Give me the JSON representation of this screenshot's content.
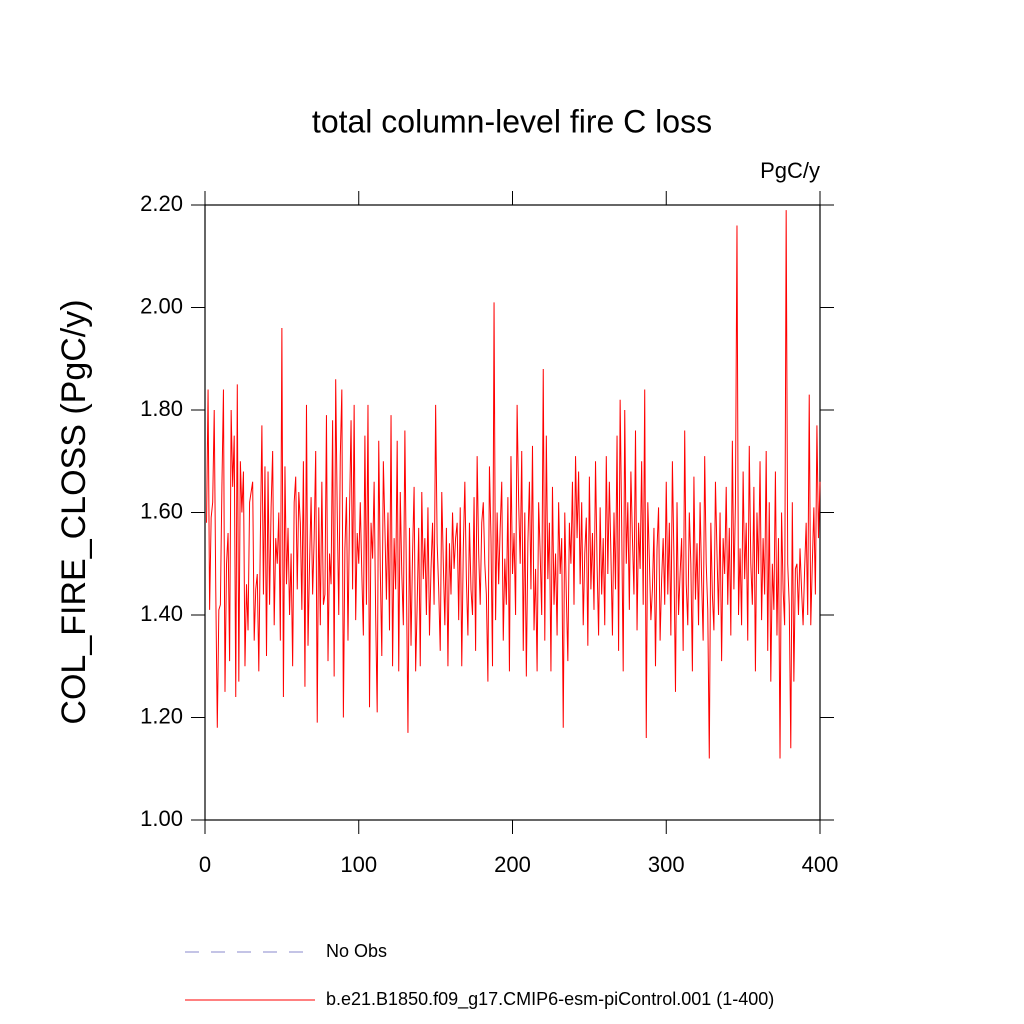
{
  "chart_data": {
    "type": "line",
    "title": "total column-level fire C loss",
    "units": "PgC/y",
    "ylabel": "COL_FIRE_CLOSS  (PgC/y)",
    "xlim": [
      0,
      400
    ],
    "xticks": [
      0,
      100,
      200,
      300,
      400
    ],
    "ylim": [
      1.0,
      2.2
    ],
    "yticks": [
      {
        "value": 1.0,
        "label": "1.00"
      },
      {
        "value": 1.2,
        "label": "1.20"
      },
      {
        "value": 1.4,
        "label": "1.40"
      },
      {
        "value": 1.6,
        "label": "1.60"
      },
      {
        "value": 1.8,
        "label": "1.80"
      },
      {
        "value": 2.0,
        "label": "2.00"
      },
      {
        "value": 2.2,
        "label": "2.20"
      }
    ],
    "legend_extra": [
      {
        "name": "No Obs",
        "color": "#8888cc",
        "dashed": true
      }
    ],
    "x": [
      1,
      2,
      3,
      4,
      5,
      6,
      7,
      8,
      9,
      10,
      11,
      12,
      13,
      14,
      15,
      16,
      17,
      18,
      19,
      20,
      21,
      22,
      23,
      24,
      25,
      26,
      27,
      28,
      29,
      30,
      31,
      32,
      33,
      34,
      35,
      36,
      37,
      38,
      39,
      40,
      41,
      42,
      43,
      44,
      45,
      46,
      47,
      48,
      49,
      50,
      51,
      52,
      53,
      54,
      55,
      56,
      57,
      58,
      59,
      60,
      61,
      62,
      63,
      64,
      65,
      66,
      67,
      68,
      69,
      70,
      71,
      72,
      73,
      74,
      75,
      76,
      77,
      78,
      79,
      80,
      81,
      82,
      83,
      84,
      85,
      86,
      87,
      88,
      89,
      90,
      91,
      92,
      93,
      94,
      95,
      96,
      97,
      98,
      99,
      100,
      101,
      102,
      103,
      104,
      105,
      106,
      107,
      108,
      109,
      110,
      111,
      112,
      113,
      114,
      115,
      116,
      117,
      118,
      119,
      120,
      121,
      122,
      123,
      124,
      125,
      126,
      127,
      128,
      129,
      130,
      131,
      132,
      133,
      134,
      135,
      136,
      137,
      138,
      139,
      140,
      141,
      142,
      143,
      144,
      145,
      146,
      147,
      148,
      149,
      150,
      151,
      152,
      153,
      154,
      155,
      156,
      157,
      158,
      159,
      160,
      161,
      162,
      163,
      164,
      165,
      166,
      167,
      168,
      169,
      170,
      171,
      172,
      173,
      174,
      175,
      176,
      177,
      178,
      179,
      180,
      181,
      182,
      183,
      184,
      185,
      186,
      187,
      188,
      189,
      190,
      191,
      192,
      193,
      194,
      195,
      196,
      197,
      198,
      199,
      200,
      201,
      202,
      203,
      204,
      205,
      206,
      207,
      208,
      209,
      210,
      211,
      212,
      213,
      214,
      215,
      216,
      217,
      218,
      219,
      220,
      221,
      222,
      223,
      224,
      225,
      226,
      227,
      228,
      229,
      230,
      231,
      232,
      233,
      234,
      235,
      236,
      237,
      238,
      239,
      240,
      241,
      242,
      243,
      244,
      245,
      246,
      247,
      248,
      249,
      250,
      251,
      252,
      253,
      254,
      255,
      256,
      257,
      258,
      259,
      260,
      261,
      262,
      263,
      264,
      265,
      266,
      267,
      268,
      269,
      270,
      271,
      272,
      273,
      274,
      275,
      276,
      277,
      278,
      279,
      280,
      281,
      282,
      283,
      284,
      285,
      286,
      287,
      288,
      289,
      290,
      291,
      292,
      293,
      294,
      295,
      296,
      297,
      298,
      299,
      300,
      301,
      302,
      303,
      304,
      305,
      306,
      307,
      308,
      309,
      310,
      311,
      312,
      313,
      314,
      315,
      316,
      317,
      318,
      319,
      320,
      321,
      322,
      323,
      324,
      325,
      326,
      327,
      328,
      329,
      330,
      331,
      332,
      333,
      334,
      335,
      336,
      337,
      338,
      339,
      340,
      341,
      342,
      343,
      344,
      345,
      346,
      347,
      348,
      349,
      350,
      351,
      352,
      353,
      354,
      355,
      356,
      357,
      358,
      359,
      360,
      361,
      362,
      363,
      364,
      365,
      366,
      367,
      368,
      369,
      370,
      371,
      372,
      373,
      374,
      375,
      376,
      377,
      378,
      379,
      380,
      381,
      382,
      383,
      384,
      385,
      386,
      387,
      388,
      389,
      390,
      391,
      392,
      393,
      394,
      395,
      396,
      397,
      398,
      399,
      400
    ],
    "series": [
      {
        "name": "b.e21.B1850.f09_g17.CMIP6-esm-piControl.001 (1-400)",
        "color": "#ff0000",
        "values": [
          1.58,
          1.84,
          1.41,
          1.59,
          1.62,
          1.8,
          1.45,
          1.18,
          1.41,
          1.42,
          1.65,
          1.84,
          1.25,
          1.5,
          1.56,
          1.31,
          1.8,
          1.65,
          1.75,
          1.24,
          1.85,
          1.27,
          1.7,
          1.6,
          1.68,
          1.3,
          1.46,
          1.37,
          1.62,
          1.64,
          1.66,
          1.35,
          1.45,
          1.48,
          1.29,
          1.55,
          1.77,
          1.44,
          1.69,
          1.32,
          1.68,
          1.42,
          1.61,
          1.72,
          1.38,
          1.55,
          1.5,
          1.6,
          1.35,
          1.96,
          1.24,
          1.69,
          1.46,
          1.57,
          1.4,
          1.52,
          1.3,
          1.62,
          1.67,
          1.45,
          1.64,
          1.58,
          1.41,
          1.7,
          1.26,
          1.81,
          1.34,
          1.5,
          1.63,
          1.44,
          1.55,
          1.72,
          1.19,
          1.61,
          1.38,
          1.66,
          1.42,
          1.44,
          1.79,
          1.31,
          1.52,
          1.46,
          1.78,
          1.28,
          1.86,
          1.6,
          1.4,
          1.71,
          1.84,
          1.2,
          1.53,
          1.63,
          1.35,
          1.6,
          1.78,
          1.45,
          1.81,
          1.39,
          1.56,
          1.5,
          1.62,
          1.48,
          1.36,
          1.75,
          1.42,
          1.81,
          1.22,
          1.58,
          1.51,
          1.66,
          1.4,
          1.21,
          1.74,
          1.49,
          1.32,
          1.7,
          1.57,
          1.43,
          1.6,
          1.37,
          1.79,
          1.3,
          1.55,
          1.45,
          1.74,
          1.29,
          1.64,
          1.48,
          1.38,
          1.76,
          1.47,
          1.17,
          1.57,
          1.34,
          1.52,
          1.65,
          1.29,
          1.42,
          1.57,
          1.3,
          1.64,
          1.47,
          1.55,
          1.4,
          1.61,
          1.36,
          1.49,
          1.58,
          1.42,
          1.81,
          1.54,
          1.45,
          1.33,
          1.64,
          1.5,
          1.38,
          1.57,
          1.3,
          1.54,
          1.44,
          1.6,
          1.49,
          1.55,
          1.58,
          1.39,
          1.61,
          1.3,
          1.53,
          1.66,
          1.47,
          1.36,
          1.58,
          1.45,
          1.4,
          1.63,
          1.33,
          1.71,
          1.52,
          1.42,
          1.58,
          1.62,
          1.5,
          1.44,
          1.27,
          1.69,
          1.55,
          1.3,
          2.01,
          1.39,
          1.6,
          1.46,
          1.57,
          1.66,
          1.35,
          1.51,
          1.42,
          1.63,
          1.29,
          1.71,
          1.48,
          1.56,
          1.4,
          1.81,
          1.62,
          1.5,
          1.72,
          1.33,
          1.6,
          1.28,
          1.54,
          1.66,
          1.45,
          1.73,
          1.37,
          1.49,
          1.29,
          1.62,
          1.52,
          1.4,
          1.88,
          1.35,
          1.75,
          1.47,
          1.58,
          1.29,
          1.65,
          1.42,
          1.52,
          1.36,
          1.62,
          1.48,
          1.55,
          1.18,
          1.6,
          1.44,
          1.31,
          1.58,
          1.5,
          1.66,
          1.42,
          1.71,
          1.55,
          1.68,
          1.46,
          1.62,
          1.38,
          1.52,
          1.59,
          1.34,
          1.67,
          1.45,
          1.56,
          1.41,
          1.7,
          1.5,
          1.36,
          1.61,
          1.44,
          1.55,
          1.38,
          1.71,
          1.48,
          1.66,
          1.52,
          1.36,
          1.6,
          1.45,
          1.75,
          1.33,
          1.82,
          1.58,
          1.29,
          1.8,
          1.5,
          1.62,
          1.41,
          1.68,
          1.55,
          1.44,
          1.76,
          1.37,
          1.58,
          1.49,
          1.7,
          1.42,
          1.84,
          1.16,
          1.62,
          1.51,
          1.39,
          1.45,
          1.57,
          1.3,
          1.53,
          1.61,
          1.35,
          1.47,
          1.55,
          1.42,
          1.66,
          1.44,
          1.58,
          1.36,
          1.7,
          1.51,
          1.25,
          1.62,
          1.4,
          1.48,
          1.55,
          1.33,
          1.76,
          1.46,
          1.38,
          1.6,
          1.5,
          1.29,
          1.67,
          1.43,
          1.54,
          1.38,
          1.62,
          1.47,
          1.35,
          1.71,
          1.5,
          1.41,
          1.12,
          1.58,
          1.44,
          1.37,
          1.66,
          1.52,
          1.4,
          1.6,
          1.31,
          1.55,
          1.48,
          1.65,
          1.42,
          1.57,
          1.36,
          1.74,
          1.45,
          1.62,
          2.16,
          1.4,
          1.53,
          1.38,
          1.68,
          1.47,
          1.58,
          1.35,
          1.73,
          1.5,
          1.42,
          1.65,
          1.29,
          1.6,
          1.48,
          1.7,
          1.39,
          1.55,
          1.44,
          1.72,
          1.33,
          1.62,
          1.27,
          1.5,
          1.41,
          1.68,
          1.36,
          1.55,
          1.12,
          1.6,
          1.45,
          1.38,
          2.19,
          1.5,
          1.42,
          1.14,
          1.62,
          1.27,
          1.49,
          1.5,
          1.4,
          1.53,
          1.45,
          1.38,
          1.49,
          1.58,
          1.4,
          1.83,
          1.38,
          1.5,
          1.61,
          1.44,
          1.77,
          1.55,
          1.66
        ]
      }
    ]
  }
}
